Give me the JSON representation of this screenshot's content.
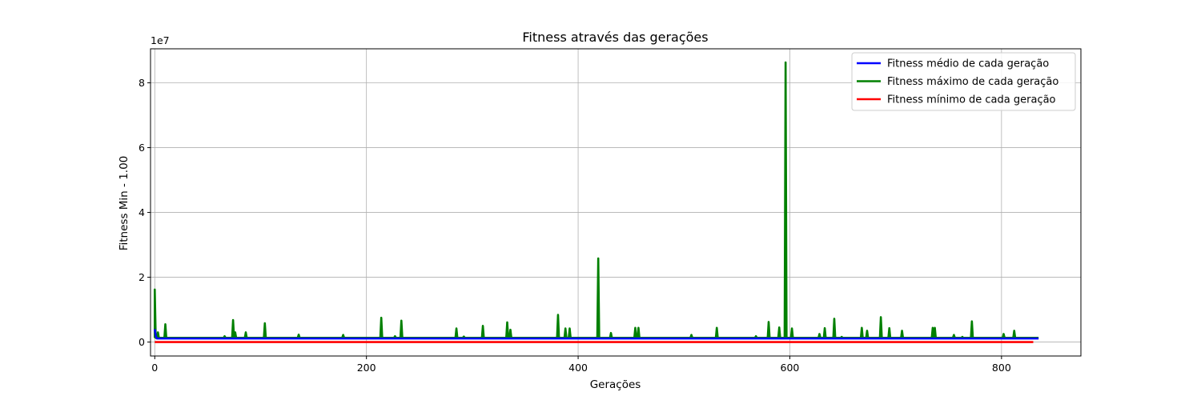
{
  "chart_data": {
    "type": "line",
    "title": "Fitness através das gerações",
    "xlabel": "Gerações",
    "ylabel": "Fitness Min -   1.00",
    "y_offset_text": "1e7",
    "y_scale_multiplier": 10000000,
    "xlim": [
      -4,
      875
    ],
    "ylim": [
      -0.43,
      9.05
    ],
    "x_ticks": [
      0,
      200,
      400,
      600,
      800
    ],
    "y_ticks": [
      0,
      2,
      4,
      6,
      8
    ],
    "grid": true,
    "legend_position": "upper right",
    "x_end": 835,
    "series": [
      {
        "name": "Fitness médio de cada geração",
        "color": "#0000ff",
        "baseline": 0.11,
        "points": [
          [
            0,
            0.4
          ],
          [
            1,
            0.18
          ],
          [
            2,
            0.11
          ],
          [
            835,
            0.11
          ]
        ]
      },
      {
        "name": "Fitness máximo de cada geração",
        "color": "#008000",
        "baseline": 0.13,
        "spikes": [
          [
            0,
            1.62
          ],
          [
            3,
            0.3
          ],
          [
            10,
            0.55
          ],
          [
            66,
            0.18
          ],
          [
            74,
            0.68
          ],
          [
            76,
            0.3
          ],
          [
            86,
            0.3
          ],
          [
            104,
            0.58
          ],
          [
            136,
            0.23
          ],
          [
            178,
            0.22
          ],
          [
            214,
            0.75
          ],
          [
            227,
            0.18
          ],
          [
            233,
            0.66
          ],
          [
            285,
            0.42
          ],
          [
            292,
            0.17
          ],
          [
            310,
            0.5
          ],
          [
            333,
            0.61
          ],
          [
            336,
            0.38
          ],
          [
            381,
            0.84
          ],
          [
            388,
            0.42
          ],
          [
            392,
            0.42
          ],
          [
            419,
            2.58
          ],
          [
            431,
            0.28
          ],
          [
            454,
            0.44
          ],
          [
            457,
            0.44
          ],
          [
            507,
            0.22
          ],
          [
            531,
            0.44
          ],
          [
            568,
            0.18
          ],
          [
            580,
            0.62
          ],
          [
            590,
            0.45
          ],
          [
            596,
            8.63
          ],
          [
            602,
            0.42
          ],
          [
            628,
            0.25
          ],
          [
            633,
            0.43
          ],
          [
            642,
            0.72
          ],
          [
            649,
            0.16
          ],
          [
            668,
            0.44
          ],
          [
            673,
            0.35
          ],
          [
            686,
            0.77
          ],
          [
            694,
            0.43
          ],
          [
            706,
            0.35
          ],
          [
            735,
            0.44
          ],
          [
            737,
            0.44
          ],
          [
            755,
            0.22
          ],
          [
            763,
            0.16
          ],
          [
            772,
            0.64
          ],
          [
            802,
            0.25
          ],
          [
            812,
            0.35
          ]
        ]
      },
      {
        "name": "Fitness mínimo de cada geração",
        "color": "#ff0000",
        "baseline": 0.0,
        "points": [
          [
            0,
            0.0
          ],
          [
            830,
            0.0
          ]
        ]
      }
    ]
  }
}
